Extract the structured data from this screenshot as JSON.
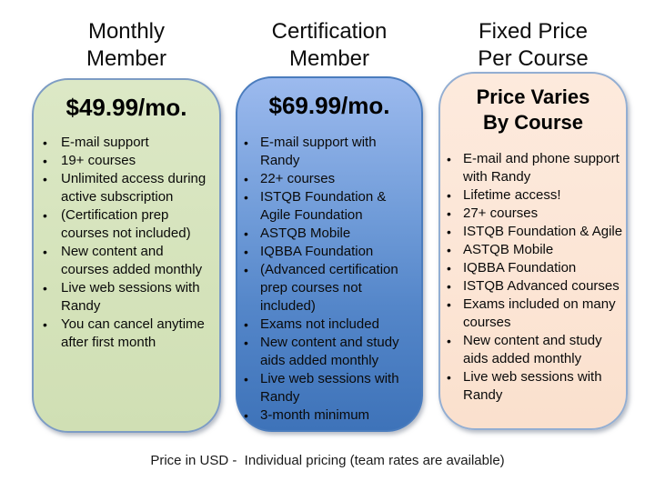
{
  "columns": [
    {
      "title": "Monthly\nMember",
      "header": "$49.99/mo.",
      "fill_color": "#d5e3bb",
      "border_color": "#7d9cc4",
      "bullets": [
        "E-mail support",
        "19+ courses",
        "Unlimited access during active subscription",
        "(Certification prep courses not included)",
        "New content and courses added monthly",
        "Live web sessions with Randy",
        "You can cancel anytime after first month"
      ]
    },
    {
      "title": "Certification\nMember",
      "header": "$69.99/mo.",
      "fill_color_top": "#9cbaee",
      "fill_color_bottom": "#3e73b9",
      "border_color": "#4a7cbd",
      "bullets": [
        "E-mail support with Randy",
        "22+ courses",
        "ISTQB Foundation & Agile Foundation",
        "ASTQB Mobile",
        "IQBBA Foundation",
        "(Advanced certification prep courses not included)",
        "Exams not included",
        "New content and study aids added monthly",
        "Live web sessions with Randy",
        "3-month minimum"
      ]
    },
    {
      "title": "Fixed Price\nPer Course",
      "header": "Price Varies\nBy Course",
      "fill_color": "#fce5d5",
      "border_color": "#93aed2",
      "bullets": [
        "E-mail and phone support with Randy",
        "Lifetime access!",
        "27+ courses",
        "ISTQB Foundation & Agile",
        "ASTQB Mobile",
        "IQBBA Foundation",
        "ISTQB Advanced courses",
        "Exams included on many courses",
        "New content and study aids added monthly",
        "Live web sessions with Randy"
      ]
    }
  ],
  "footer": "Price in USD -  Individual pricing (team rates are available)",
  "bullet_glyph": "•",
  "background_color": "#ffffff",
  "text_color": "#000000"
}
